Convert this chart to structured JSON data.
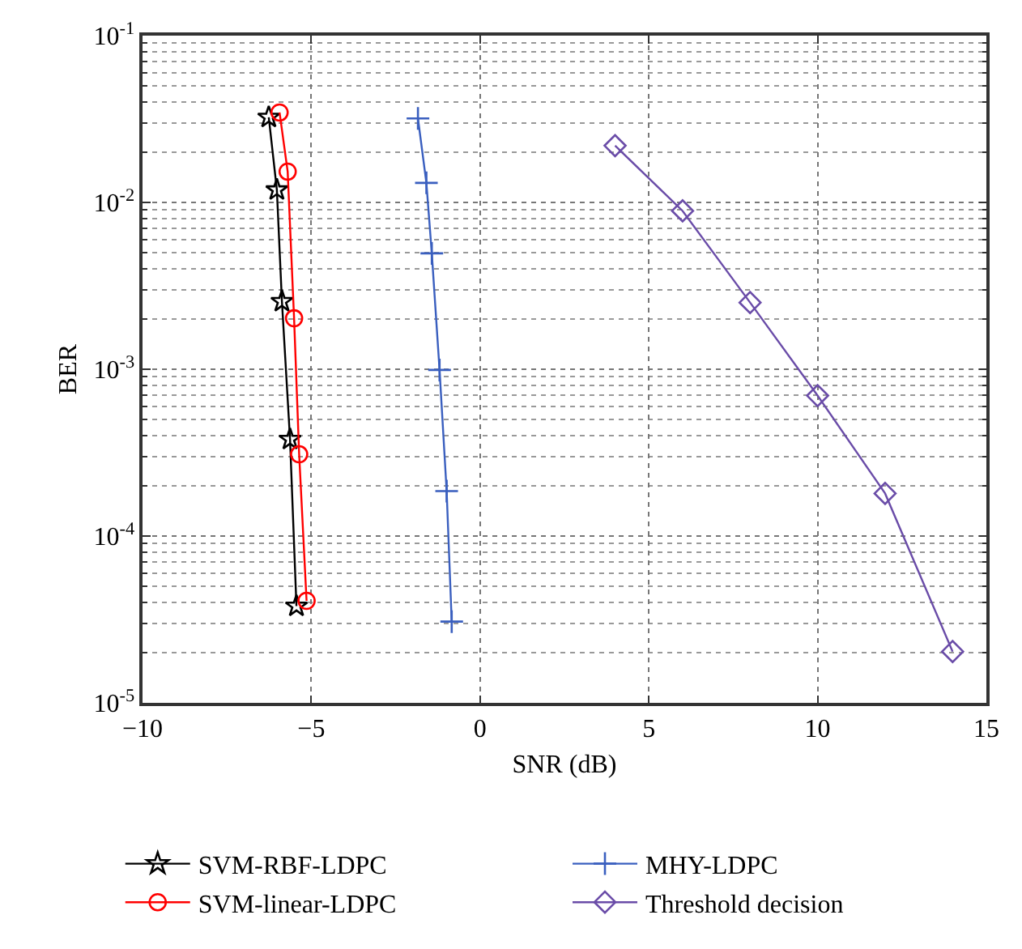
{
  "chart_data": {
    "type": "line",
    "xlabel": "SNR (dB)",
    "ylabel": "BER",
    "log": "y",
    "grid": true,
    "legend": "bottom",
    "xlim": [
      -10,
      15
    ],
    "xticks": [
      -10,
      -5,
      0,
      5,
      10,
      15
    ],
    "ylim": [
      1e-05,
      0.1
    ],
    "yticks": [
      {
        "value": 1e-05,
        "label": "10$^{-5}$"
      },
      {
        "value": 0.0001,
        "label": "10$^{-4}$"
      },
      {
        "value": 0.001,
        "label": "10$^{-3}$"
      },
      {
        "value": 0.01,
        "label": "10$^{-2}$"
      },
      {
        "value": 0.1,
        "label": "10$^{-1}$"
      }
    ],
    "series": [
      {
        "name": "SVM-RBF-LDPC",
        "color": "#000000",
        "marker": "star",
        "x": [
          -6.26,
          -6.02,
          -5.87,
          -5.63,
          -5.44
        ],
        "values": [
          0.0324,
          0.0119,
          0.00255,
          0.00038,
          3.8e-05
        ]
      },
      {
        "name": "SVM-linear-LDPC",
        "color": "#ff0000",
        "marker": "circle",
        "x": [
          -5.94,
          -5.7,
          -5.51,
          -5.36,
          -5.14
        ],
        "values": [
          0.0346,
          0.0153,
          0.00202,
          0.000309,
          4.09e-05
        ]
      },
      {
        "name": "MHY-LDPC",
        "color": "#3a5fbf",
        "marker": "cross",
        "x": [
          -1.84,
          -1.59,
          -1.43,
          -1.2,
          -0.99,
          -0.84
        ],
        "values": [
          0.0319,
          0.0131,
          0.00495,
          0.00099,
          0.000186,
          3.07e-05
        ]
      },
      {
        "name": "Threshold decision",
        "color": "#6a4ca8",
        "marker": "diamond",
        "x": [
          4,
          6,
          8,
          10,
          12,
          14
        ],
        "values": [
          0.0219,
          0.0089,
          0.00251,
          0.000695,
          0.00018,
          2.03e-05
        ]
      }
    ]
  }
}
